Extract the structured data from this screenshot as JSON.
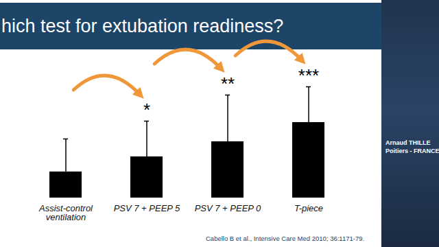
{
  "chart_data": {
    "type": "bar",
    "title": "hich test for extubation readiness?",
    "categories": [
      "Assist-control\nventilation",
      "PSV 7 + PEEP 5",
      "PSV 7 + PEEP 0",
      "T-piece"
    ],
    "values": [
      19,
      30,
      41,
      55
    ],
    "errors": [
      24,
      26,
      34,
      26
    ],
    "significance": [
      null,
      "*",
      "**",
      "***"
    ],
    "color": "#000000",
    "ylim": [
      0,
      100
    ],
    "tick_labels": false,
    "caption": "Cabello B et al., Intensive Care Med 2010; 36:1171-79."
  },
  "speaker": {
    "name": "Arnaud THILLE",
    "place": "Poitiers - FRANCE"
  }
}
